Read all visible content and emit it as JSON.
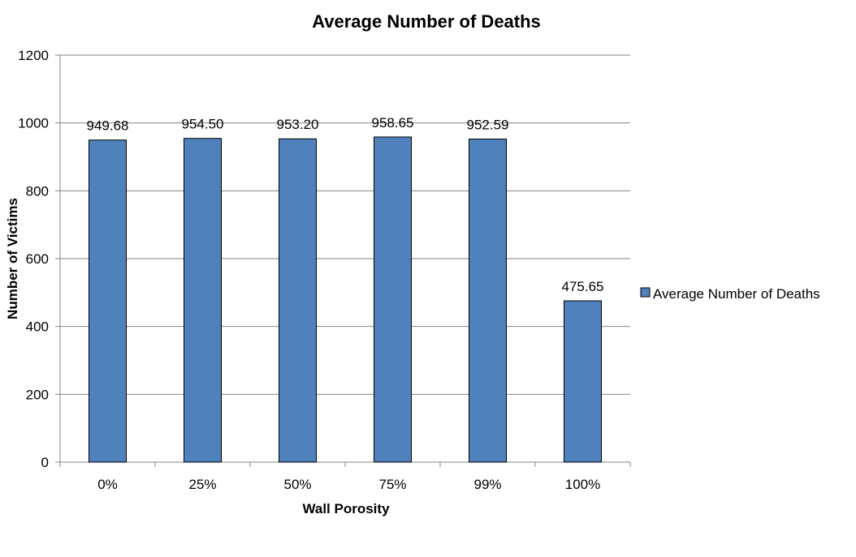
{
  "chart_data": {
    "type": "bar",
    "title": "Average Number of Deaths",
    "xlabel": "Wall Porosity",
    "ylabel": "Number of Victims",
    "categories": [
      "0%",
      "25%",
      "50%",
      "75%",
      "99%",
      "100%"
    ],
    "series": [
      {
        "name": "Average Number of Deaths",
        "values": [
          949.68,
          954.5,
          953.2,
          958.65,
          952.59,
          475.65
        ],
        "data_labels": [
          "949.68",
          "954.50",
          "953.20",
          "958.65",
          "952.59",
          "475.65"
        ],
        "color": "#4F81BD"
      }
    ],
    "ylim": [
      0,
      1200
    ],
    "yticks": [
      0,
      200,
      400,
      600,
      800,
      1000,
      1200
    ],
    "grid": true,
    "legend_position": "right"
  }
}
